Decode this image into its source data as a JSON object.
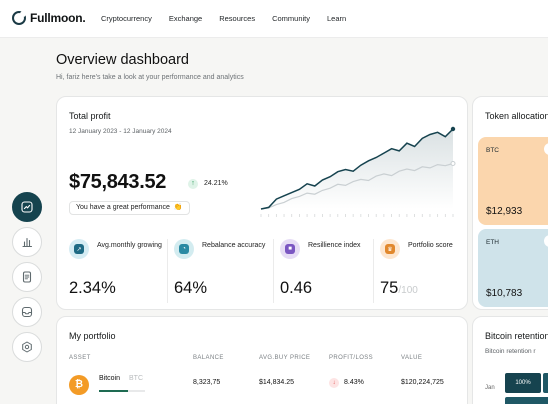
{
  "brand": {
    "name": "Fullmoon."
  },
  "nav": [
    "Cryptocurrency",
    "Exchange",
    "Resources",
    "Community",
    "Learn"
  ],
  "header": {
    "title": "Overview dashboard",
    "subtitle": "Hi, fariz here's take a look at your performance and analytics"
  },
  "rail": [
    "chart-icon",
    "bar-chart-icon",
    "document-icon",
    "inbox-icon",
    "settings-icon"
  ],
  "profit": {
    "title": "Total profit",
    "range": "12 January 2023 - 12 January 2024",
    "value": "$75,843.52",
    "change": "24.21%",
    "message": "You have a great performance",
    "emoji": "👏",
    "chart_data": {
      "type": "line",
      "series": [
        {
          "values": [
            0.0,
            0.3,
            1.8,
            2.4,
            3.0,
            3.6,
            4.6,
            4.2,
            5.3,
            5.9,
            6.8,
            7.2,
            6.9,
            8.0,
            8.8,
            9.4,
            10.2,
            11.0,
            10.6,
            12.0,
            11.4,
            12.9,
            13.6,
            14.0,
            13.2,
            14.6
          ]
        },
        {
          "values": [
            0.0,
            0.2,
            0.8,
            1.2,
            1.9,
            2.3,
            2.9,
            2.7,
            3.4,
            3.8,
            4.5,
            4.3,
            5.0,
            5.4,
            5.2,
            6.0,
            6.4,
            6.1,
            6.9,
            7.3,
            7.0,
            7.7,
            7.5,
            8.1,
            7.9,
            8.3
          ]
        }
      ],
      "accent": "#16434f",
      "secondary": "#c9cfd2"
    }
  },
  "metrics": [
    {
      "label": "Avg.monthly growing",
      "value": "2.34%",
      "suffix": "",
      "icon": "growth-icon",
      "bg": "#d5ecf3",
      "fg": "#1e6a84"
    },
    {
      "label": "Rebalance accuracy",
      "value": "64%",
      "suffix": "",
      "icon": "gauge-icon",
      "bg": "#d3ecf0",
      "fg": "#2a8aa3"
    },
    {
      "label": "Resillience index",
      "value": "0.46",
      "suffix": "",
      "icon": "shield-icon",
      "bg": "#e6dcf5",
      "fg": "#7b56c2"
    },
    {
      "label": "Portfolio score",
      "value": "75",
      "suffix": "/100",
      "icon": "trophy-icon",
      "bg": "#fde6cf",
      "fg": "#e1882d"
    }
  ],
  "token": {
    "title": "Token allocation",
    "items": [
      {
        "symbol": "BTC",
        "value": "$12,933"
      },
      {
        "symbol": "ETH",
        "value": "$10,783"
      }
    ]
  },
  "portfolio": {
    "title": "My portfolio",
    "columns": [
      "ASSET",
      "BALANCE",
      "AVG.BUY PRICE",
      "PROFIT/LOSS",
      "VALUE"
    ],
    "rows": [
      {
        "name": "Bitcoin",
        "symbol": "BTC",
        "balance": "8,323,75",
        "avg_price": "$14,834.25",
        "pl": "8.43%",
        "value": "$120,224,725",
        "allocation": 0.62
      }
    ]
  },
  "retention": {
    "title": "Bitcoin retention",
    "subtitle": "Bitcoin retention r",
    "month": "Jan",
    "cell": "100%"
  }
}
